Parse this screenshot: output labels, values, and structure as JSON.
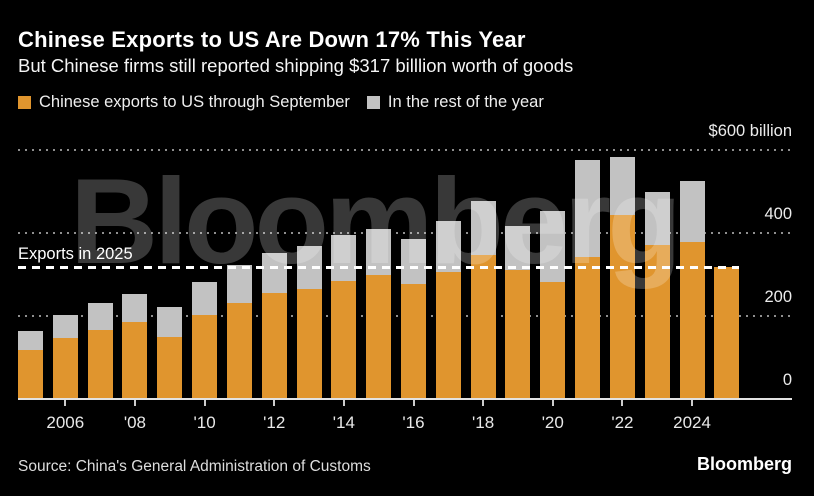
{
  "header": {
    "title": "Chinese Exports to US Are Down 17% This Year",
    "subtitle": "But Chinese firms still reported shipping $317 billlion worth of goods"
  },
  "legend": [
    {
      "label": "Chinese exports to US through September",
      "color": "#e0952e"
    },
    {
      "label": "In the rest of the year",
      "color": "#c2c2c2"
    }
  ],
  "watermark": "Bloomberg",
  "footer": {
    "source": "Source: China's General Administration of Customs",
    "brand": "Bloomberg"
  },
  "colors": {
    "background": "#000000",
    "bar_orange": "#e0952e",
    "bar_gray": "#c2c2c2",
    "gridline": "#8f8f8f",
    "reference_line": "#ffffff",
    "text": "#ffffff"
  },
  "chart_data": {
    "type": "bar",
    "stacked": true,
    "title": "Chinese Exports to US Are Down 17% This Year",
    "subtitle": "But Chinese firms still reported shipping $317 billlion worth of goods",
    "unit": "USD billions",
    "ylim": [
      0,
      600
    ],
    "y_gridlines": [
      200,
      400,
      600
    ],
    "grid": true,
    "legend_position": "top",
    "years": [
      2005,
      2006,
      2007,
      2008,
      2009,
      2010,
      2011,
      2012,
      2013,
      2014,
      2015,
      2016,
      2017,
      2018,
      2019,
      2020,
      2021,
      2022,
      2023,
      2024,
      2025
    ],
    "series": [
      {
        "name": "Chinese exports to US through September",
        "color": "#e0952e",
        "values": [
          117,
          146,
          166,
          186,
          150,
          203,
          232,
          255,
          264,
          284,
          300,
          278,
          305,
          346,
          310,
          283,
          343,
          443,
          370,
          378,
          317
        ]
      },
      {
        "name": "In the rest of the year",
        "color": "#c2c2c2",
        "values": [
          46,
          57,
          66,
          66,
          71,
          80,
          92,
          97,
          104,
          112,
          109,
          107,
          125,
          132,
          108,
          169,
          233,
          139,
          130,
          147,
          0
        ]
      }
    ],
    "x_ticks": [
      {
        "year": 2006,
        "label": "2006"
      },
      {
        "year": 2008,
        "label": "'08"
      },
      {
        "year": 2010,
        "label": "'10"
      },
      {
        "year": 2012,
        "label": "'12"
      },
      {
        "year": 2014,
        "label": "'14"
      },
      {
        "year": 2016,
        "label": "'16"
      },
      {
        "year": 2018,
        "label": "'18"
      },
      {
        "year": 2020,
        "label": "'20"
      },
      {
        "year": 2022,
        "label": "'22"
      },
      {
        "year": 2024,
        "label": "2024"
      }
    ],
    "y_axis_labels": [
      {
        "text": "$600 billion",
        "value": 600
      },
      {
        "text": "400",
        "value": 400
      },
      {
        "text": "200",
        "value": 200
      },
      {
        "text": "0",
        "value": 0
      }
    ],
    "reference_line": {
      "label": "Exports in 2025",
      "value": 317
    }
  }
}
